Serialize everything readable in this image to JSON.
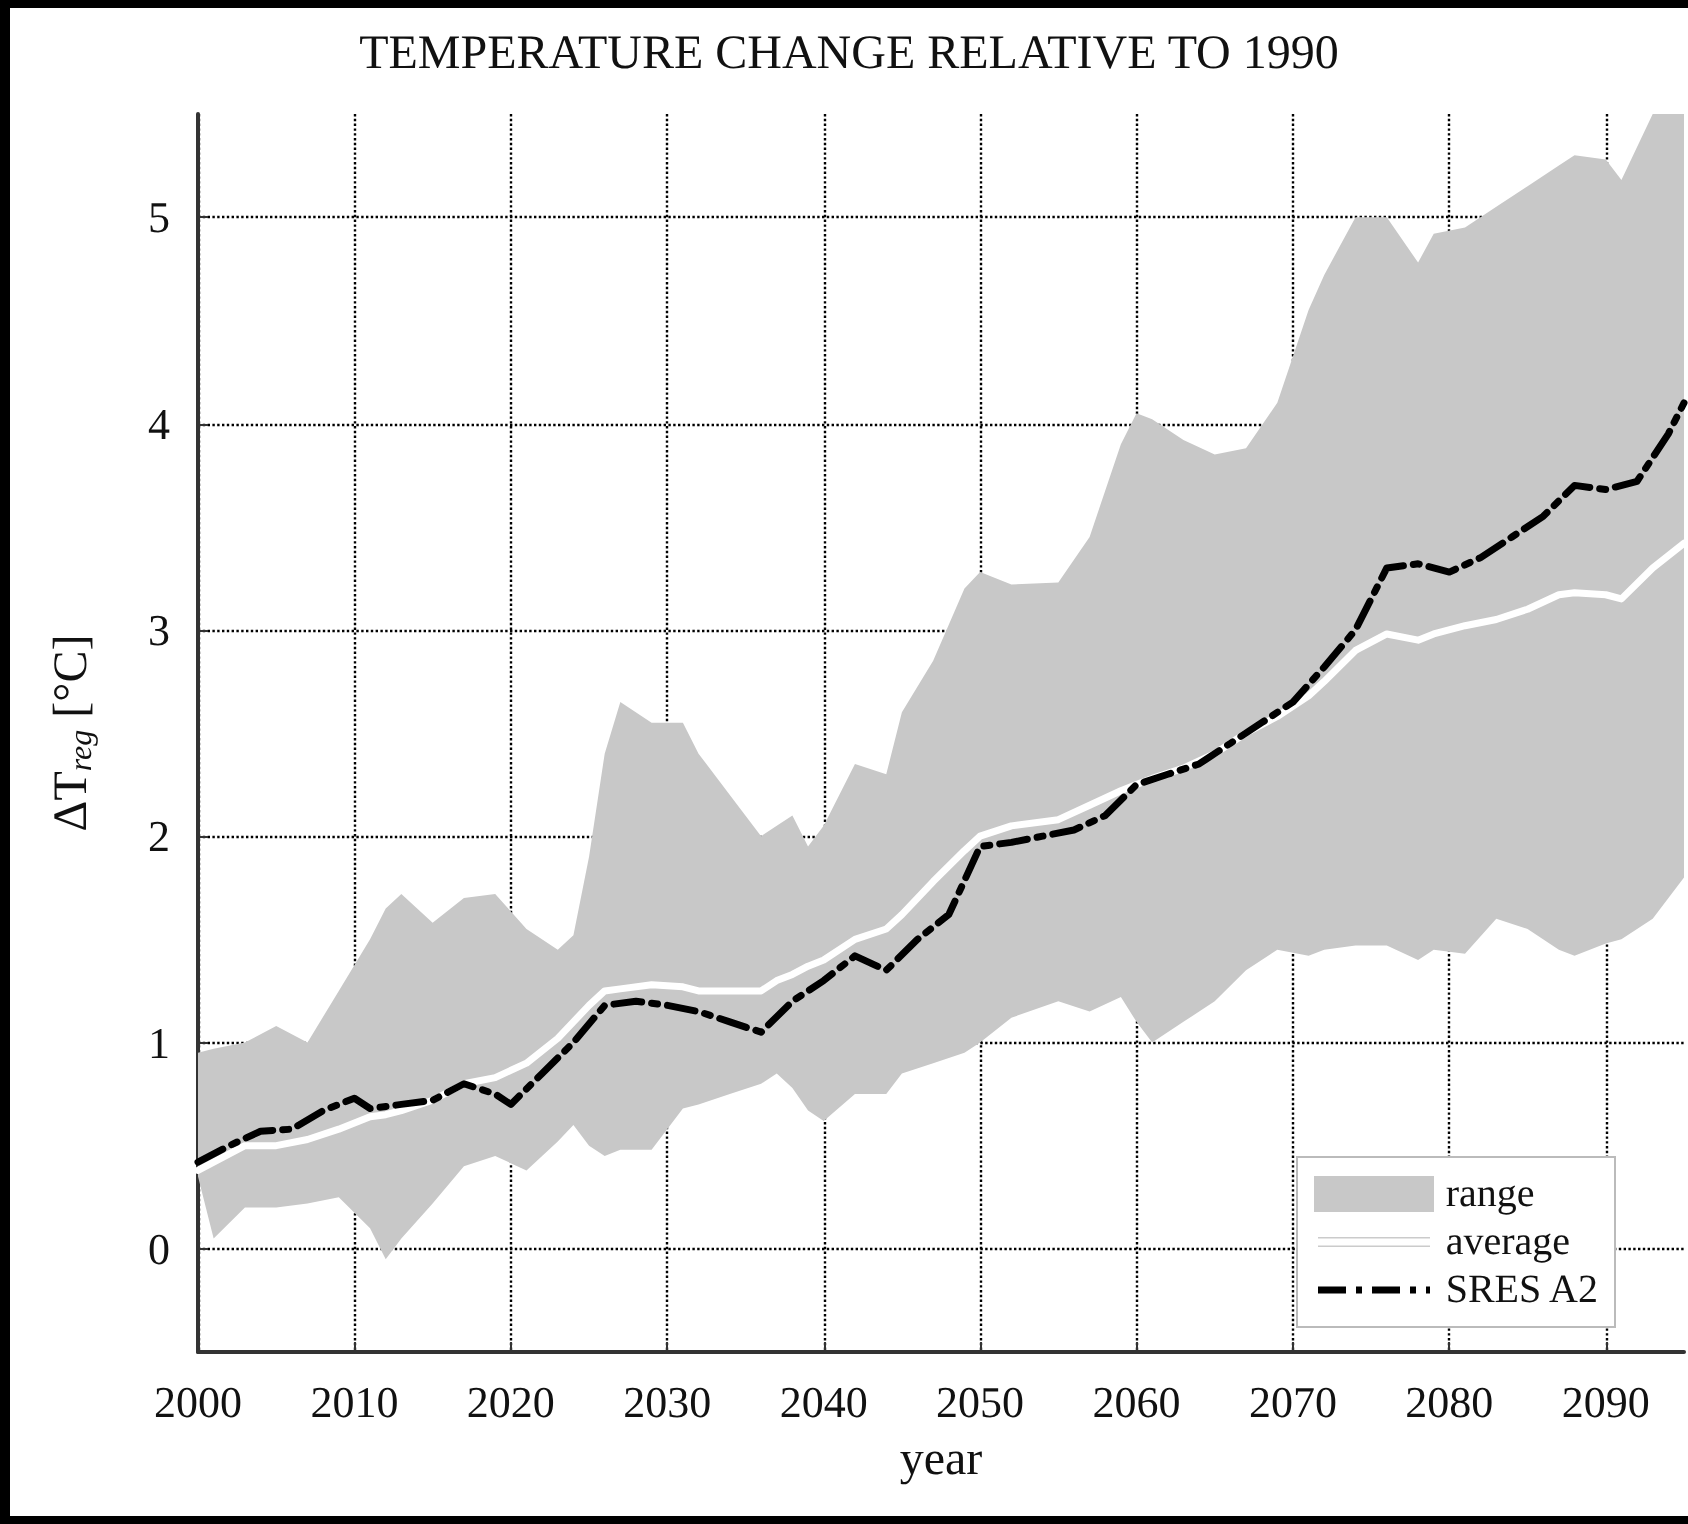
{
  "chart_data": {
    "type": "line",
    "title": "TEMPERATURE CHANGE RELATIVE TO 1990",
    "xlabel": "year",
    "ylabel": "ΔT$_{reg}$ [°C]",
    "xlim": [
      2000,
      2095
    ],
    "xticks": [
      2000,
      2010,
      2020,
      2030,
      2040,
      2050,
      2060,
      2070,
      2080,
      2090
    ],
    "ylim": [
      -0.5,
      5.5
    ],
    "yticks": [
      0,
      1,
      2,
      3,
      4,
      5
    ],
    "grid": true,
    "legend": "bottom right",
    "annotations": [
      "range"
    ],
    "series": [
      {
        "name": "average",
        "color": "#ffffff",
        "line_style": "solid",
        "x": [
          2000,
          2001,
          2003,
          2005,
          2007,
          2009,
          2011,
          2012,
          2013,
          2015,
          2017,
          2019,
          2021,
          2023,
          2024,
          2025,
          2026,
          2027,
          2029,
          2031,
          2032,
          2034,
          2036,
          2037,
          2038,
          2039,
          2040,
          2042,
          2044,
          2045,
          2047,
          2049,
          2050,
          2052,
          2055,
          2057,
          2059,
          2060,
          2061,
          2063,
          2065,
          2067,
          2069,
          2071,
          2072,
          2074,
          2076,
          2078,
          2079,
          2081,
          2083,
          2085,
          2087,
          2088,
          2090,
          2091,
          2093,
          2095
        ],
        "values": [
          0.38,
          0.42,
          0.5,
          0.5,
          0.53,
          0.58,
          0.64,
          0.65,
          0.67,
          0.72,
          0.8,
          0.83,
          0.9,
          1.02,
          1.1,
          1.18,
          1.25,
          1.26,
          1.28,
          1.27,
          1.25,
          1.25,
          1.25,
          1.3,
          1.33,
          1.37,
          1.4,
          1.5,
          1.55,
          1.62,
          1.78,
          1.93,
          2.0,
          2.05,
          2.08,
          2.15,
          2.22,
          2.25,
          2.28,
          2.33,
          2.4,
          2.5,
          2.58,
          2.68,
          2.75,
          2.9,
          2.98,
          2.95,
          2.98,
          3.02,
          3.05,
          3.1,
          3.17,
          3.18,
          3.17,
          3.15,
          3.3,
          3.42
        ],
        "upper": [
          0.95,
          0.97,
          1.0,
          1.08,
          1.0,
          1.25,
          1.5,
          1.65,
          1.72,
          1.58,
          1.7,
          1.72,
          1.55,
          1.45,
          1.52,
          1.9,
          2.4,
          2.65,
          2.55,
          2.55,
          2.4,
          2.2,
          2.0,
          2.05,
          2.1,
          1.95,
          2.05,
          2.35,
          2.3,
          2.6,
          2.85,
          3.2,
          3.28,
          3.22,
          3.23,
          3.45,
          3.9,
          4.05,
          4.02,
          3.92,
          3.85,
          3.88,
          4.1,
          4.55,
          4.72,
          5.0,
          5.0,
          4.78,
          4.92,
          4.95,
          5.05,
          5.15,
          5.25,
          5.3,
          5.28,
          5.18,
          5.5,
          5.5
        ],
        "lower": [
          0.35,
          0.05,
          0.2,
          0.2,
          0.22,
          0.25,
          0.1,
          -0.05,
          0.05,
          0.22,
          0.4,
          0.45,
          0.38,
          0.52,
          0.6,
          0.5,
          0.45,
          0.48,
          0.48,
          0.68,
          0.7,
          0.75,
          0.8,
          0.85,
          0.78,
          0.67,
          0.62,
          0.75,
          0.75,
          0.85,
          0.9,
          0.95,
          1.0,
          1.12,
          1.2,
          1.15,
          1.22,
          1.1,
          1.0,
          1.1,
          1.2,
          1.35,
          1.45,
          1.42,
          1.45,
          1.47,
          1.47,
          1.4,
          1.45,
          1.43,
          1.6,
          1.55,
          1.45,
          1.42,
          1.48,
          1.5,
          1.6,
          1.8
        ]
      },
      {
        "name": "SRES A2",
        "color": "#000000",
        "line_style": "dashed",
        "x": [
          2000,
          2002,
          2004,
          2006,
          2008,
          2010,
          2011,
          2013,
          2015,
          2017,
          2019,
          2020,
          2022,
          2024,
          2026,
          2028,
          2030,
          2032,
          2034,
          2036,
          2038,
          2040,
          2042,
          2044,
          2046,
          2048,
          2050,
          2052,
          2054,
          2056,
          2058,
          2060,
          2062,
          2064,
          2066,
          2068,
          2070,
          2072,
          2074,
          2076,
          2078,
          2080,
          2082,
          2084,
          2086,
          2088,
          2090,
          2092,
          2094,
          2095
        ],
        "values": [
          0.42,
          0.5,
          0.57,
          0.58,
          0.67,
          0.73,
          0.68,
          0.7,
          0.72,
          0.8,
          0.75,
          0.7,
          0.85,
          1.0,
          1.18,
          1.2,
          1.18,
          1.15,
          1.1,
          1.05,
          1.2,
          1.3,
          1.42,
          1.35,
          1.5,
          1.62,
          1.95,
          1.97,
          2.0,
          2.03,
          2.1,
          2.25,
          2.3,
          2.35,
          2.45,
          2.55,
          2.65,
          2.82,
          3.0,
          3.3,
          3.32,
          3.28,
          3.35,
          3.45,
          3.55,
          3.7,
          3.68,
          3.72,
          3.95,
          4.1
        ]
      }
    ]
  }
}
